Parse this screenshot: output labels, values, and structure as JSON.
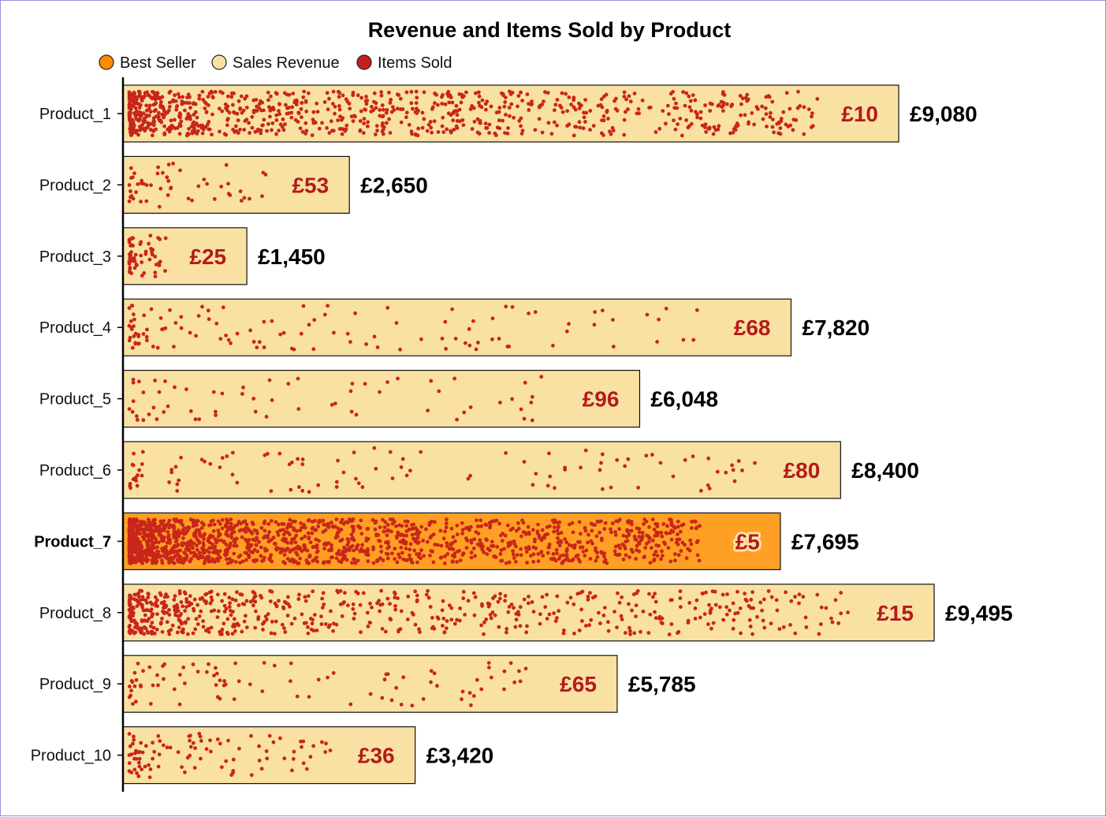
{
  "chart_data": {
    "type": "bar",
    "orientation": "horizontal",
    "title": "Revenue and Items Sold by Product",
    "legend": {
      "placement": "top-left",
      "entries": [
        {
          "label": "Best Seller",
          "color": "#ff8c00"
        },
        {
          "label": "Sales Revenue",
          "color": "#f9e1a3"
        },
        {
          "label": "Items Sold",
          "color": "#c41e1e"
        }
      ]
    },
    "colors": {
      "bar": "#f9e1a3",
      "best_bar": "#ffa024",
      "dot": "#c8261a",
      "price_text": "#b31b1b"
    },
    "best_seller": "Product_7",
    "xlim": [
      0,
      9495
    ],
    "categories": [
      "Product_1",
      "Product_2",
      "Product_3",
      "Product_4",
      "Product_5",
      "Product_6",
      "Product_7",
      "Product_8",
      "Product_9",
      "Product_10"
    ],
    "series": [
      {
        "name": "Sales Revenue",
        "values": [
          9080,
          2650,
          1450,
          7820,
          6048,
          8400,
          7695,
          9495,
          5785,
          3420
        ]
      },
      {
        "name": "Items Sold",
        "values": [
          908,
          50,
          58,
          115,
          63,
          105,
          1539,
          633,
          89,
          95
        ]
      }
    ],
    "revenue_labels": [
      "£9,080",
      "£2,650",
      "£1,450",
      "£7,820",
      "£6,048",
      "£8,400",
      "£7,695",
      "£9,495",
      "£5,785",
      "£3,420"
    ],
    "price_labels": [
      "£10",
      "£53",
      "£25",
      "£68",
      "£96",
      "£80",
      "£5",
      "£15",
      "£65",
      "£36"
    ]
  }
}
